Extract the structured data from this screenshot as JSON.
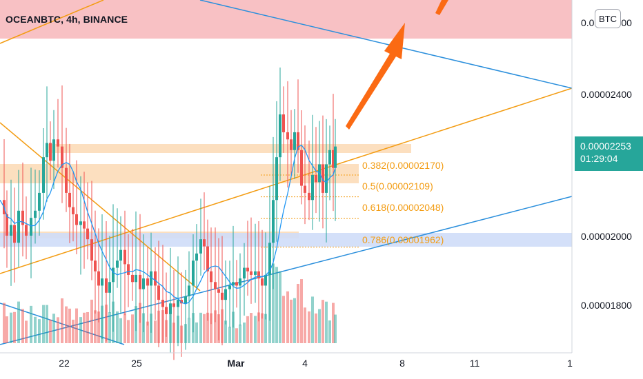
{
  "chart_data": {
    "type": "candlestick",
    "title": "OCEANBTC, 4h, BINANCE",
    "symbol": "OCEANBTC",
    "interval": "4h",
    "exchange": "BINANCE",
    "quote_currency": "BTC",
    "y_axis": {
      "position": "right",
      "ticks": [
        "0.00002400",
        "0.00002000",
        "0.00001800"
      ],
      "partial_top_label": "0.00002600"
    },
    "x_axis": {
      "ticks": [
        "22",
        "25",
        "Mar",
        "4",
        "8",
        "11",
        "1"
      ]
    },
    "last_price": "0.00002253",
    "countdown": "01:29:04",
    "fib_levels": [
      {
        "label": "0.382(0.00002170)",
        "ratio": 0.382,
        "price": 2.17e-05
      },
      {
        "label": "0.5(0.00002109)",
        "ratio": 0.5,
        "price": 2.109e-05
      },
      {
        "label": "0.618(0.00002048)",
        "ratio": 0.618,
        "price": 2.048e-05
      },
      {
        "label": "0.786(0.00001962)",
        "ratio": 0.786,
        "price": 1.962e-05
      }
    ],
    "zones": [
      {
        "name": "target-zone",
        "color": "#f8c1c4"
      },
      {
        "name": "resistance-zone",
        "color": "#fbd9b4"
      },
      {
        "name": "support-zone",
        "color": "#cfddf8"
      }
    ],
    "colors": {
      "up": "#26a69a",
      "down": "#ef5350",
      "ma": "#2196f3",
      "trend_orange": "#f39c12",
      "trend_blue": "#2b8fdc",
      "fib": "#f39c12",
      "arrow": "#fb6a13"
    },
    "grid": false
  }
}
